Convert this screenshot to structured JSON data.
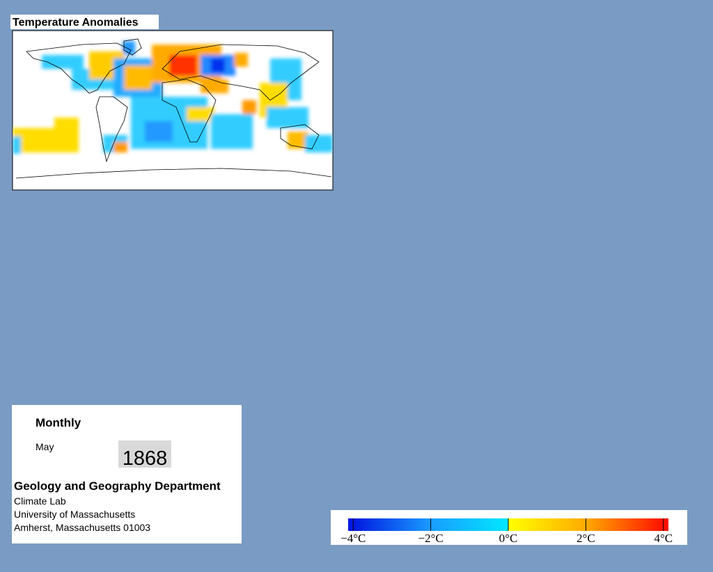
{
  "map": {
    "title": "Temperature Anomalies"
  },
  "info": {
    "frequency": "Monthly",
    "month": "May",
    "year": "1868",
    "department": "Geology and Geography Department",
    "lines": [
      "Climate Lab",
      "University of Massachusetts",
      "Amherst, Massachusetts 01003"
    ]
  },
  "colorbar": {
    "lim": [
      -4.13,
      4.13
    ],
    "ticks": [
      {
        "value": -4,
        "label": "−4°C"
      },
      {
        "value": -2,
        "label": "−2°C"
      },
      {
        "value": 0,
        "label": "0°C"
      },
      {
        "value": 2,
        "label": "2°C"
      },
      {
        "value": 4,
        "label": "4°C"
      }
    ],
    "stops": [
      {
        "value": -4,
        "color": "#0018e0"
      },
      {
        "value": -2,
        "color": "#1a9cff"
      },
      {
        "value": 0,
        "color": "#00e8ff"
      },
      {
        "value": 0,
        "color": "#ffff00"
      },
      {
        "value": 2,
        "color": "#ffaa00"
      },
      {
        "value": 4,
        "color": "#ff1000"
      }
    ]
  }
}
